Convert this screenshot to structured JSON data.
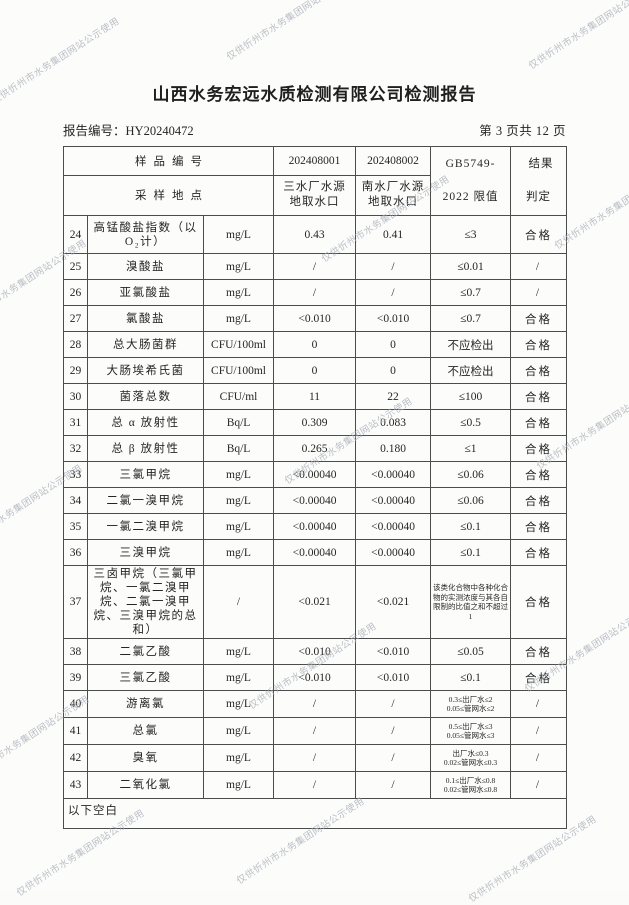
{
  "watermark": {
    "text": "仅供忻州市水务集团网站公示使用"
  },
  "page_header": {
    "title": "山西水务宏远水质检测有限公司检测报告",
    "report_no_label": "报告编号：",
    "report_no": "HY20240472",
    "page_info": "第 3 页共 12 页"
  },
  "table": {
    "head": {
      "row1_label": "样品编号",
      "row2_label": "采样地点",
      "sample1_id": "202408001",
      "sample2_id": "202408002",
      "sample1_location": "三水厂水源\n地取水口",
      "sample2_location": "南水厂水源\n地取水口",
      "limit_header": "GB5749-\n2022 限值",
      "verdict_header": "结果\n判定"
    },
    "rows": [
      {
        "no": "24",
        "param": "高锰酸盐指数（以O₂计）",
        "unit": "mg/L",
        "v1": "0.43",
        "v2": "0.41",
        "limit": "≤3",
        "verdict": "合格"
      },
      {
        "no": "25",
        "param": "溴酸盐",
        "unit": "mg/L",
        "v1": "/",
        "v2": "/",
        "limit": "≤0.01",
        "verdict": "/"
      },
      {
        "no": "26",
        "param": "亚氯酸盐",
        "unit": "mg/L",
        "v1": "/",
        "v2": "/",
        "limit": "≤0.7",
        "verdict": "/"
      },
      {
        "no": "27",
        "param": "氯酸盐",
        "unit": "mg/L",
        "v1": "<0.010",
        "v2": "<0.010",
        "limit": "≤0.7",
        "verdict": "合格"
      },
      {
        "no": "28",
        "param": "总大肠菌群",
        "unit": "CFU/100ml",
        "v1": "0",
        "v2": "0",
        "limit": "不应检出",
        "verdict": "合格"
      },
      {
        "no": "29",
        "param": "大肠埃希氏菌",
        "unit": "CFU/100ml",
        "v1": "0",
        "v2": "0",
        "limit": "不应检出",
        "verdict": "合格"
      },
      {
        "no": "30",
        "param": "菌落总数",
        "unit": "CFU/ml",
        "v1": "11",
        "v2": "22",
        "limit": "≤100",
        "verdict": "合格"
      },
      {
        "no": "31",
        "param": "总 α 放射性",
        "unit": "Bq/L",
        "v1": "0.309",
        "v2": "0.083",
        "limit": "≤0.5",
        "verdict": "合格"
      },
      {
        "no": "32",
        "param": "总 β 放射性",
        "unit": "Bq/L",
        "v1": "0.265",
        "v2": "0.180",
        "limit": "≤1",
        "verdict": "合格"
      },
      {
        "no": "33",
        "param": "三氯甲烷",
        "unit": "mg/L",
        "v1": "<0.00040",
        "v2": "<0.00040",
        "limit": "≤0.06",
        "verdict": "合格"
      },
      {
        "no": "34",
        "param": "二氯一溴甲烷",
        "unit": "mg/L",
        "v1": "<0.00040",
        "v2": "<0.00040",
        "limit": "≤0.06",
        "verdict": "合格"
      },
      {
        "no": "35",
        "param": "一氯二溴甲烷",
        "unit": "mg/L",
        "v1": "<0.00040",
        "v2": "<0.00040",
        "limit": "≤0.1",
        "verdict": "合格"
      },
      {
        "no": "36",
        "param": "三溴甲烷",
        "unit": "mg/L",
        "v1": "<0.00040",
        "v2": "<0.00040",
        "limit": "≤0.1",
        "verdict": "合格"
      },
      {
        "no": "37",
        "param": "三卤甲烷（三氯甲烷、一氯二溴甲烷、二氯一溴甲烷、三溴甲烷的总和）",
        "unit": "/",
        "v1": "<0.021",
        "v2": "<0.021",
        "limit": "该类化合物中各种化合物的实测浓度与其各自限制的比值之和不超过1",
        "verdict": "合格"
      },
      {
        "no": "38",
        "param": "二氯乙酸",
        "unit": "mg/L",
        "v1": "<0.010",
        "v2": "<0.010",
        "limit": "≤0.05",
        "verdict": "合格"
      },
      {
        "no": "39",
        "param": "三氯乙酸",
        "unit": "mg/L",
        "v1": "<0.010",
        "v2": "<0.010",
        "limit": "≤0.1",
        "verdict": "合格"
      },
      {
        "no": "40",
        "param": "游离氯",
        "unit": "mg/L",
        "v1": "/",
        "v2": "/",
        "limit": "0.3≤出厂水≤2\n0.05≤管网水≤2",
        "verdict": "/"
      },
      {
        "no": "41",
        "param": "总氯",
        "unit": "mg/L",
        "v1": "/",
        "v2": "/",
        "limit": "0.5≤出厂水≤3\n0.05≤管网水≤3",
        "verdict": "/"
      },
      {
        "no": "42",
        "param": "臭氧",
        "unit": "mg/L",
        "v1": "/",
        "v2": "/",
        "limit": "出厂水≤0.3\n0.02≤管网水≤0.3",
        "verdict": "/"
      },
      {
        "no": "43",
        "param": "二氧化氯",
        "unit": "mg/L",
        "v1": "/",
        "v2": "/",
        "limit": "0.1≤出厂水≤0.8\n0.02≤管网水≤0.8",
        "verdict": "/"
      }
    ],
    "footer_note": "以下空白"
  }
}
